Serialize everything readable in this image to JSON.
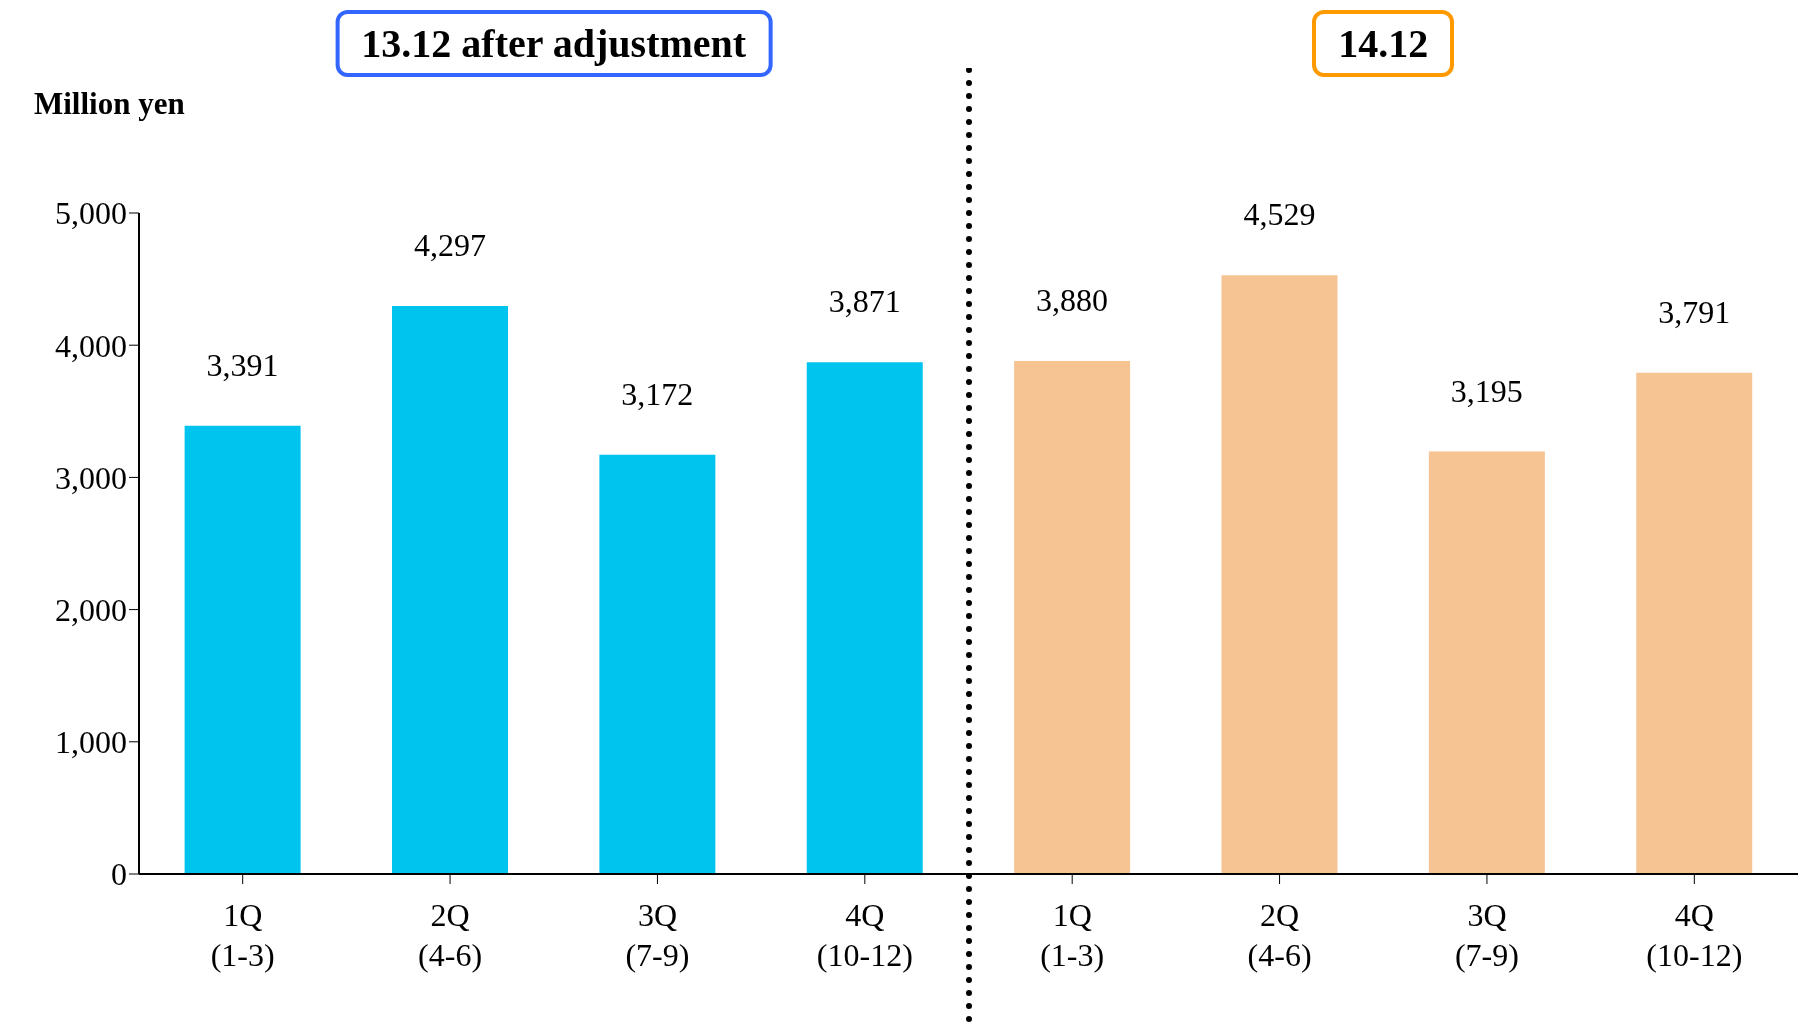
{
  "chart_data": {
    "type": "bar",
    "ylabel": "Million yen",
    "categories": [
      "1Q\n(1-3)",
      "2Q\n(4-6)",
      "3Q\n(7-9)",
      "4Q\n(10-12)",
      "1Q\n(1-3)",
      "2Q\n(4-6)",
      "3Q\n(7-9)",
      "4Q\n(10-12)"
    ],
    "values": [
      3391,
      4297,
      3172,
      3871,
      3880,
      4529,
      3195,
      3791
    ],
    "value_labels": [
      "3,391",
      "4,297",
      "3,172",
      "3,871",
      "3,880",
      "4,529",
      "3,195",
      "3,791"
    ],
    "colors": [
      "#00c4ee",
      "#00c4ee",
      "#00c4ee",
      "#00c4ee",
      "#f6c392",
      "#f6c392",
      "#f6c392",
      "#f6c392"
    ],
    "ylim": [
      0,
      5000
    ],
    "yticks": [
      0,
      {
        "value": 1000,
        "label": "1,000"
      },
      {
        "value": 2000,
        "label": "2,000"
      },
      {
        "value": 3000,
        "label": "3,000"
      },
      {
        "value": 4000,
        "label": "4,000"
      },
      {
        "value": 5000,
        "label": "5,000"
      }
    ],
    "annotations": [
      "13.12 after adjustment",
      "14.12"
    ]
  }
}
